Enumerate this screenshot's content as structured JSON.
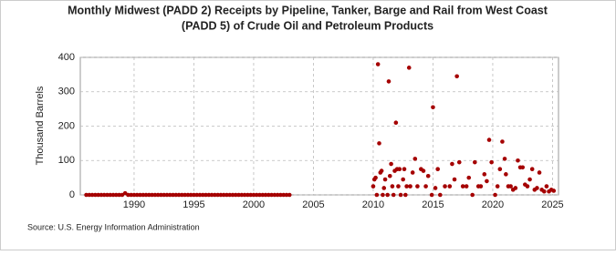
{
  "chart_data": {
    "type": "scatter",
    "title": [
      "Monthly Midwest (PADD 2) Receipts by Pipeline, Tanker, Barge and Rail from West Coast",
      "(PADD 5) of Crude Oil and Petroleum Products"
    ],
    "y_label": "Thousand Barrels",
    "source": "Source: U.S. Energy Information Administration",
    "xlim": [
      1985.5,
      2025.5
    ],
    "xticks": [
      1990,
      1995,
      2000,
      2005,
      2010,
      2015,
      2020,
      2025
    ],
    "ylim": [
      0,
      400
    ],
    "yticks": [
      0,
      100,
      200,
      300,
      400
    ],
    "grid": true,
    "series": [
      {
        "color": "#a50000",
        "x": [
          1986,
          1986.25,
          1986.5,
          1986.75,
          1987,
          1987.25,
          1987.5,
          1987.75,
          1988,
          1988.25,
          1988.5,
          1988.75,
          1989,
          1989.25,
          1989.5,
          1989.75,
          1990,
          1990.25,
          1990.5,
          1990.75,
          1991,
          1991.25,
          1991.5,
          1991.75,
          1992,
          1992.25,
          1992.5,
          1992.75,
          1993,
          1993.25,
          1993.5,
          1993.75,
          1994,
          1994.25,
          1994.5,
          1994.75,
          1995,
          1995.25,
          1995.5,
          1995.75,
          1996,
          1996.25,
          1996.5,
          1996.75,
          1997,
          1997.25,
          1997.5,
          1997.75,
          1998,
          1998.25,
          1998.5,
          1998.75,
          1999,
          1999.25,
          1999.5,
          1999.75,
          2000,
          2000.25,
          2000.5,
          2000.75,
          2001,
          2001.25,
          2001.5,
          2001.75,
          2002,
          2002.25,
          2002.5,
          2002.75,
          2003,
          2010,
          2010.1,
          2010.2,
          2010.3,
          2010.4,
          2010.5,
          2010.6,
          2010.7,
          2010.8,
          2010.9,
          2011,
          2011.2,
          2011.3,
          2011.4,
          2011.5,
          2011.6,
          2011.7,
          2011.8,
          2011.9,
          2012,
          2012.1,
          2012.2,
          2012.3,
          2012.5,
          2012.6,
          2012.7,
          2012.8,
          2013,
          2013.1,
          2013.3,
          2013.5,
          2013.7,
          2014,
          2014.2,
          2014.4,
          2014.6,
          2014.9,
          2015,
          2015.2,
          2015.4,
          2015.6,
          2016,
          2016.4,
          2016.6,
          2016.8,
          2017,
          2017.2,
          2017.5,
          2017.8,
          2018,
          2018.3,
          2018.5,
          2018.8,
          2019,
          2019.3,
          2019.5,
          2019.7,
          2019.9,
          2020.2,
          2020.4,
          2020.6,
          2020.8,
          2021,
          2021.1,
          2021.3,
          2021.5,
          2021.7,
          2021.9,
          2022.1,
          2022.3,
          2022.5,
          2022.7,
          2022.9,
          2023.1,
          2023.3,
          2023.5,
          2023.7,
          2023.9,
          2024.1,
          2024.3,
          2024.5,
          2024.7,
          2024.9,
          2025.1
        ],
        "values": [
          0,
          0,
          0,
          0,
          0,
          0,
          0,
          0,
          0,
          0,
          0,
          0,
          0,
          5,
          0,
          0,
          0,
          0,
          0,
          0,
          0,
          0,
          0,
          0,
          0,
          0,
          0,
          0,
          0,
          0,
          0,
          0,
          0,
          0,
          0,
          0,
          0,
          0,
          0,
          0,
          0,
          0,
          0,
          0,
          0,
          0,
          0,
          0,
          0,
          0,
          0,
          0,
          0,
          0,
          0,
          0,
          0,
          0,
          0,
          0,
          0,
          0,
          0,
          0,
          0,
          0,
          0,
          0,
          0,
          25,
          45,
          50,
          0,
          380,
          150,
          65,
          70,
          0,
          20,
          45,
          0,
          330,
          55,
          90,
          25,
          0,
          70,
          210,
          75,
          25,
          75,
          0,
          45,
          75,
          0,
          25,
          370,
          25,
          65,
          105,
          25,
          75,
          70,
          25,
          55,
          0,
          255,
          20,
          75,
          0,
          25,
          25,
          90,
          45,
          345,
          95,
          25,
          25,
          50,
          0,
          95,
          25,
          25,
          60,
          40,
          160,
          95,
          0,
          25,
          75,
          155,
          105,
          60,
          25,
          25,
          15,
          20,
          100,
          80,
          80,
          30,
          25,
          45,
          75,
          15,
          20,
          65,
          15,
          10,
          25,
          10,
          15,
          12
        ]
      }
    ]
  }
}
